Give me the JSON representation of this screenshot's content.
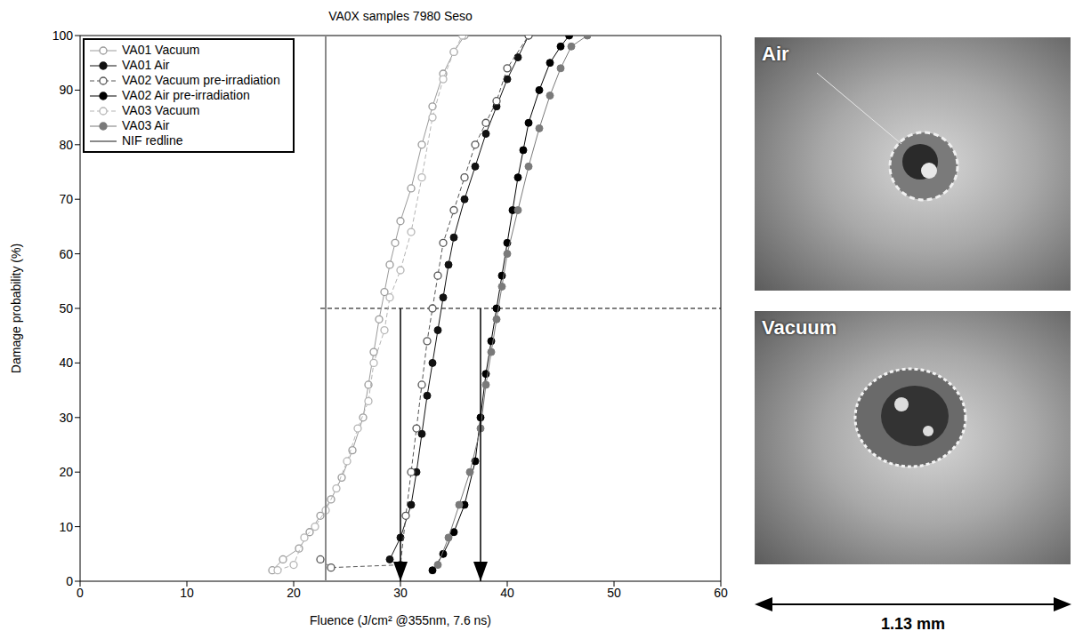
{
  "chart_data": {
    "type": "scatter",
    "title": "VA0X samples 7980 Seso",
    "x_label": "Fluence (J/cm² @355nm, 7.6 ns)",
    "y_label": "Damage probability (%)",
    "xlim": [
      0,
      60
    ],
    "xticks": [
      0,
      10,
      20,
      30,
      40,
      50,
      60
    ],
    "ylim": [
      0,
      100
    ],
    "yticks": [
      0,
      10,
      20,
      30,
      40,
      50,
      60,
      70,
      80,
      90,
      100
    ],
    "grid": false,
    "legend": "upper left",
    "series": [
      {
        "name": "VA01 Vacuum",
        "color": "#9a9a9a",
        "marker": "circle_open",
        "line_style": "solid",
        "x": [
          18,
          19,
          20.5,
          21.5,
          22.5,
          23.5,
          24.5,
          25.5,
          26.5,
          27,
          27.5,
          28,
          28.5,
          29,
          29.5,
          30,
          31,
          32,
          33,
          34,
          35,
          36
        ],
        "values": [
          2,
          4,
          6,
          9,
          12,
          15,
          19,
          24,
          30,
          36,
          42,
          48,
          53,
          58,
          62,
          66,
          72,
          80,
          87,
          93,
          97,
          100
        ]
      },
      {
        "name": "VA01 Air",
        "color": "#111111",
        "marker": "circle_filled",
        "line_style": "solid",
        "x": [
          29,
          30,
          31,
          31.5,
          32,
          32.5,
          33,
          33.5,
          34,
          34.5,
          35,
          36,
          37,
          38,
          39,
          40,
          41,
          42
        ],
        "values": [
          4,
          8,
          14,
          20,
          27,
          34,
          40,
          46,
          52,
          58,
          63,
          70,
          76,
          82,
          87,
          92,
          96,
          100
        ]
      },
      {
        "name": "VA02 Vacuum pre-irradiation",
        "color": "#555555",
        "marker": "circle_open",
        "line_style": "dashed",
        "x": [
          22.5,
          23.5,
          30,
          30.5,
          31,
          31.5,
          32,
          32.5,
          33,
          33.5,
          34,
          35,
          36,
          37,
          38,
          39,
          40,
          42
        ],
        "values": [
          4,
          2.5,
          3,
          12,
          20,
          28,
          36,
          44,
          50,
          56,
          62,
          68,
          74,
          80,
          84,
          88,
          94,
          100
        ]
      },
      {
        "name": "VA02 Air pre-irradiation",
        "color": "#000000",
        "marker": "circle_filled",
        "line_style": "solid",
        "x": [
          33,
          34,
          35,
          36,
          37,
          37.5,
          38,
          38.5,
          39,
          39.5,
          40,
          40.5,
          41,
          41.5,
          42,
          43,
          44,
          45,
          45.8
        ],
        "values": [
          2,
          5,
          9,
          14,
          22,
          30,
          38,
          44,
          50,
          56,
          62,
          68,
          74,
          79,
          84,
          90,
          95,
          98,
          100
        ]
      },
      {
        "name": "VA03 Vacuum",
        "color": "#b5b5b5",
        "marker": "circle_open",
        "line_style": "dashed",
        "x": [
          18.5,
          20,
          21,
          22,
          23,
          24,
          25,
          26,
          27,
          27.5,
          28.5,
          29,
          30,
          31,
          32,
          33,
          34,
          35,
          35.8
        ],
        "values": [
          2,
          3,
          8,
          10,
          13,
          17,
          22,
          28,
          33,
          40,
          46,
          52,
          57,
          64,
          74,
          85,
          92,
          97,
          100
        ]
      },
      {
        "name": "VA03 Air",
        "color": "#7a7a7a",
        "marker": "circle_filled",
        "line_style": "solid",
        "x": [
          33.5,
          34.5,
          35.5,
          36.5,
          37.5,
          38,
          38.5,
          39,
          39.5,
          40,
          41,
          42,
          43,
          44,
          45,
          46,
          47.5
        ],
        "values": [
          3,
          8,
          14,
          20,
          28,
          36,
          42,
          48,
          54,
          60,
          68,
          76,
          83,
          89,
          94,
          98,
          100
        ]
      },
      {
        "name": "NIF redline",
        "color": "#8a8a8a",
        "marker": "none",
        "line_style": "solid",
        "x": [
          23,
          23
        ],
        "values": [
          0,
          100
        ]
      }
    ],
    "reference_line": {
      "y": 50,
      "x_from": 22.5,
      "x_to": 60,
      "line_style": "dashed",
      "color": "#000000"
    },
    "arrows": [
      {
        "x": 30,
        "y_from": 50,
        "y_to": 0,
        "color": "#000000"
      },
      {
        "x": 37.5,
        "y_from": 50,
        "y_to": 0,
        "color": "#000000"
      }
    ]
  },
  "images": [
    {
      "label": "Air"
    },
    {
      "label": "Vacuum"
    }
  ],
  "scale_bar": {
    "label": "1.13 mm"
  }
}
